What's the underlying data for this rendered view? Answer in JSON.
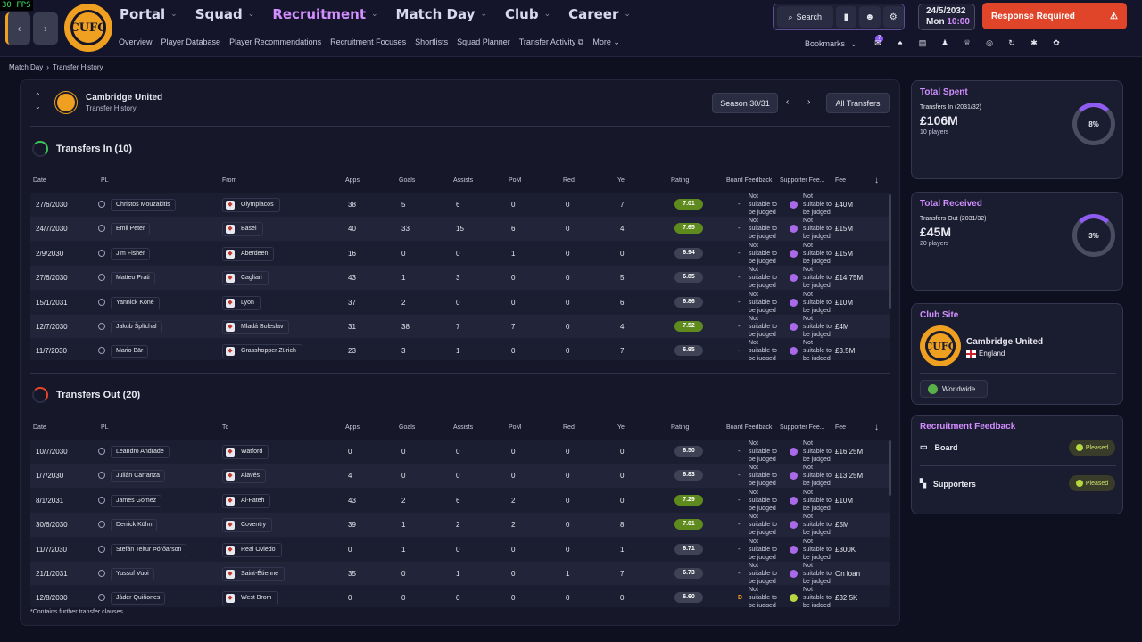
{
  "fps": "30 FPS",
  "crest_text": "CUFC",
  "nav": {
    "main": [
      "Portal",
      "Squad",
      "Recruitment",
      "Match Day",
      "Club",
      "Career"
    ],
    "active": "Recruitment",
    "sub": [
      "Overview",
      "Player Database",
      "Player Recommendations",
      "Recruitment Focuses",
      "Shortlists",
      "Squad Planner",
      "Transfer Activity",
      "More"
    ]
  },
  "toolbar": {
    "search_label": "Search",
    "bookmarks_label": "Bookmarks",
    "notif_count": "7"
  },
  "date": {
    "date": "24/5/2032",
    "day": "Mon",
    "time": "10:00"
  },
  "response_label": "Response Required",
  "breadcrumb": [
    "Match Day",
    "Transfer History"
  ],
  "panel": {
    "club": "Cambridge United",
    "subtitle": "Transfer History",
    "season": "Season 30/31",
    "all_transfers": "All Transfers",
    "footnote": "*Contains further transfer clauses"
  },
  "columns": {
    "date": "Date",
    "pl": "PL",
    "from": "From",
    "to": "To",
    "apps": "Apps",
    "goals": "Goals",
    "assists": "Assists",
    "pom": "PoM",
    "red": "Red",
    "yel": "Yel",
    "rating": "Rating",
    "board": "Board Feedback",
    "supporter": "Supporter Fee...",
    "fee": "Fee"
  },
  "transfers_in": {
    "title": "Transfers In (10)",
    "rows": [
      {
        "date": "27/6/2030",
        "name": "Christos Mouzakitis",
        "club": "Olympiacos",
        "apps": "38",
        "goals": "5",
        "assists": "6",
        "pom": "0",
        "red": "0",
        "yel": "7",
        "rating": "7.01",
        "rc": "green",
        "fee": "£40M"
      },
      {
        "date": "24/7/2030",
        "name": "Emil Peter",
        "club": "Basel",
        "apps": "40",
        "goals": "33",
        "assists": "15",
        "pom": "6",
        "red": "0",
        "yel": "4",
        "rating": "7.65",
        "rc": "green",
        "fee": "£15M"
      },
      {
        "date": "2/9/2030",
        "name": "Jim Fisher",
        "club": "Aberdeen",
        "apps": "16",
        "goals": "0",
        "assists": "0",
        "pom": "1",
        "red": "0",
        "yel": "0",
        "rating": "6.94",
        "rc": "grey",
        "fee": "£15M"
      },
      {
        "date": "27/6/2030",
        "name": "Matteo Prati",
        "club": "Cagliari",
        "apps": "43",
        "goals": "1",
        "assists": "3",
        "pom": "0",
        "red": "0",
        "yel": "5",
        "rating": "6.85",
        "rc": "grey",
        "fee": "£14.75M"
      },
      {
        "date": "15/1/2031",
        "name": "Yannick Koné",
        "club": "Lyon",
        "apps": "37",
        "goals": "2",
        "assists": "0",
        "pom": "0",
        "red": "0",
        "yel": "6",
        "rating": "6.86",
        "rc": "grey",
        "fee": "£10M"
      },
      {
        "date": "12/7/2030",
        "name": "Jakub Šplíchal",
        "club": "Mladá Boleslav",
        "apps": "31",
        "goals": "38",
        "assists": "7",
        "pom": "7",
        "red": "0",
        "yel": "4",
        "rating": "7.52",
        "rc": "green",
        "fee": "£4M"
      },
      {
        "date": "11/7/2030",
        "name": "Mario Bär",
        "club": "Grasshopper Zürich",
        "apps": "23",
        "goals": "3",
        "assists": "1",
        "pom": "0",
        "red": "0",
        "yel": "7",
        "rating": "6.95",
        "rc": "grey",
        "fee": "£3.5M"
      }
    ]
  },
  "transfers_out": {
    "title": "Transfers Out (20)",
    "rows": [
      {
        "date": "10/7/2030",
        "name": "Leandro Andrade",
        "club": "Watford",
        "apps": "0",
        "goals": "0",
        "assists": "0",
        "pom": "0",
        "red": "0",
        "yel": "0",
        "rating": "6.50",
        "rc": "grey",
        "fee": "£16.25M"
      },
      {
        "date": "1/7/2030",
        "name": "Julián Carranza",
        "club": "Alavés",
        "apps": "4",
        "goals": "0",
        "assists": "0",
        "pom": "0",
        "red": "0",
        "yel": "0",
        "rating": "6.83",
        "rc": "grey",
        "fee": "£13.25M"
      },
      {
        "date": "8/1/2031",
        "name": "James Gomez",
        "club": "Al-Fateh",
        "apps": "43",
        "goals": "2",
        "assists": "6",
        "pom": "2",
        "red": "0",
        "yel": "0",
        "rating": "7.29",
        "rc": "green",
        "fee": "£10M"
      },
      {
        "date": "30/6/2030",
        "name": "Derrick Köhn",
        "club": "Coventry",
        "apps": "39",
        "goals": "1",
        "assists": "2",
        "pom": "2",
        "red": "0",
        "yel": "8",
        "rating": "7.01",
        "rc": "green",
        "fee": "£5M"
      },
      {
        "date": "11/7/2030",
        "name": "Stefán Teitur Þórðarson",
        "club": "Real Oviedo",
        "apps": "0",
        "goals": "1",
        "assists": "0",
        "pom": "0",
        "red": "0",
        "yel": "1",
        "rating": "6.71",
        "rc": "grey",
        "fee": "£300K"
      },
      {
        "date": "21/1/2031",
        "name": "Yussuf Vuoi",
        "club": "Saint-Étienne",
        "apps": "35",
        "goals": "0",
        "assists": "1",
        "pom": "0",
        "red": "1",
        "yel": "7",
        "rating": "6.73",
        "rc": "grey",
        "fee": "On loan"
      },
      {
        "date": "12/8/2030",
        "name": "Jáder Quiñones",
        "club": "West Brom",
        "apps": "0",
        "goals": "0",
        "assists": "0",
        "pom": "0",
        "red": "0",
        "yel": "0",
        "rating": "6.60",
        "rc": "grey",
        "fee": "£32.5K"
      }
    ]
  },
  "feedback_text": "Not suitable to be judged",
  "sidebar": {
    "spent": {
      "title": "Total Spent",
      "sub": "Transfers In (2031/32)",
      "value": "£106M",
      "players": "10 players",
      "pct": "8%",
      "pct_value": 8
    },
    "received": {
      "title": "Total Received",
      "sub": "Transfers Out (2031/32)",
      "value": "£45M",
      "players": "20 players",
      "pct": "3%",
      "pct_value": 3
    },
    "site": {
      "title": "Club Site",
      "club": "Cambridge United",
      "country": "England",
      "worldwide": "Worldwide"
    },
    "feedback": {
      "title": "Recruitment Feedback",
      "board": "Board",
      "supporters": "Supporters",
      "status": "Pleased"
    }
  }
}
